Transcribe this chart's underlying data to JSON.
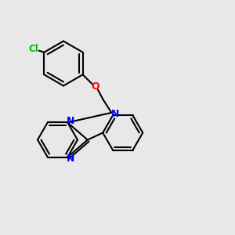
{
  "bg_color": "#e8e8e8",
  "bond_color": "#000000",
  "N_color": "#0000ee",
  "O_color": "#ff0000",
  "Cl_color": "#00bb00",
  "lw": 1.5,
  "xlim": [
    0,
    10
  ],
  "ylim": [
    0,
    10
  ]
}
